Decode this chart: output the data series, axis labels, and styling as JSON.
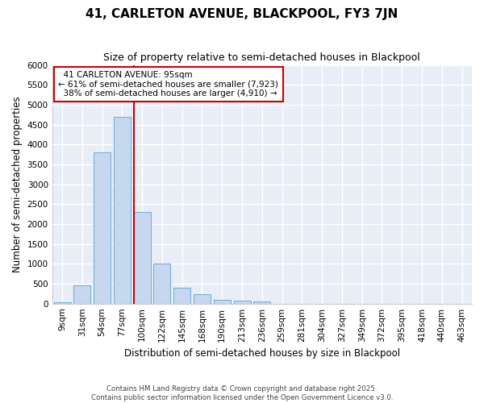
{
  "title": "41, CARLETON AVENUE, BLACKPOOL, FY3 7JN",
  "subtitle": "Size of property relative to semi-detached houses in Blackpool",
  "xlabel": "Distribution of semi-detached houses by size in Blackpool",
  "ylabel": "Number of semi-detached properties",
  "footnote": "Contains HM Land Registry data © Crown copyright and database right 2025.\nContains public sector information licensed under the Open Government Licence v3.0.",
  "bar_labels": [
    "9sqm",
    "31sqm",
    "54sqm",
    "77sqm",
    "100sqm",
    "122sqm",
    "145sqm",
    "168sqm",
    "190sqm",
    "213sqm",
    "236sqm",
    "259sqm",
    "281sqm",
    "304sqm",
    "327sqm",
    "349sqm",
    "372sqm",
    "395sqm",
    "418sqm",
    "440sqm",
    "463sqm"
  ],
  "bar_values": [
    30,
    450,
    3800,
    4700,
    2300,
    1000,
    400,
    230,
    100,
    80,
    60,
    0,
    0,
    0,
    0,
    0,
    0,
    0,
    0,
    0,
    0
  ],
  "bar_color": "#c5d8ef",
  "bar_edge_color": "#7bafd4",
  "background_color": "#ffffff",
  "plot_bg_color": "#e8eef7",
  "grid_color": "#ffffff",
  "property_label": "41 CARLETON AVENUE: 95sqm",
  "pct_smaller": 61,
  "pct_smaller_count": 7923,
  "pct_larger": 38,
  "pct_larger_count": 4910,
  "vline_color": "#cc0000",
  "annotation_edge_color": "#cc0000",
  "vline_index": 4,
  "ylim": [
    0,
    6000
  ],
  "yticks": [
    0,
    500,
    1000,
    1500,
    2000,
    2500,
    3000,
    3500,
    4000,
    4500,
    5000,
    5500,
    6000
  ],
  "title_fontsize": 11,
  "subtitle_fontsize": 9,
  "axis_label_fontsize": 8.5,
  "tick_fontsize": 7.5,
  "annot_fontsize": 7.5
}
